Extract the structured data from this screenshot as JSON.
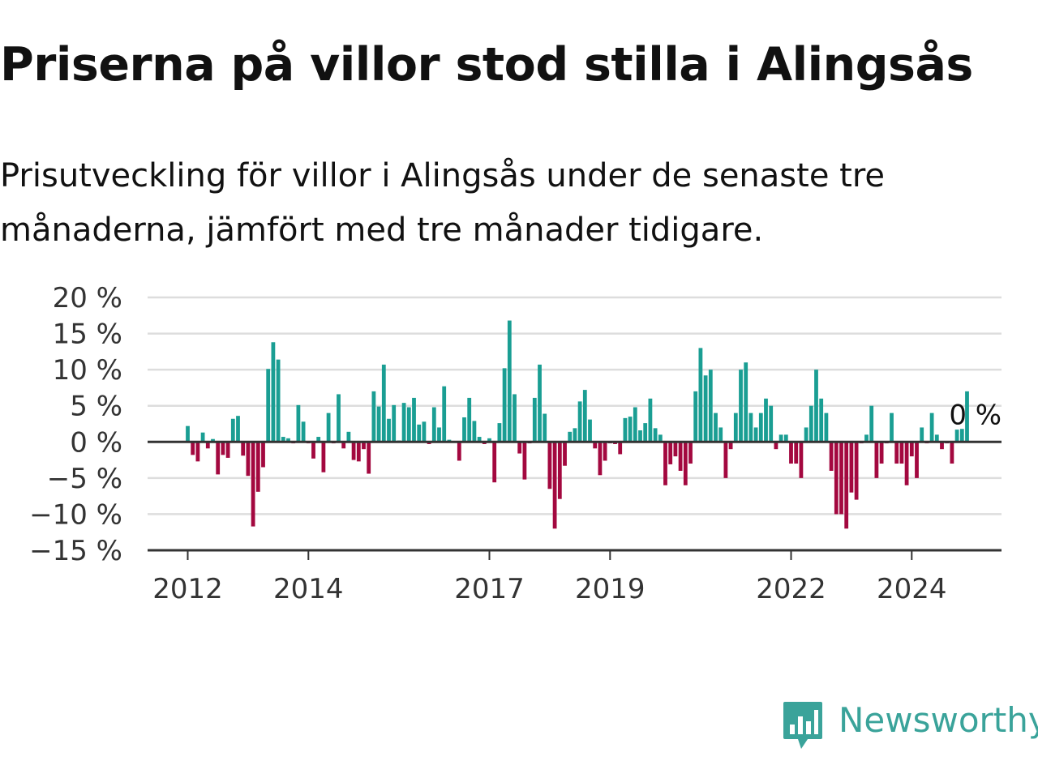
{
  "title": "Priserna på villor stod stilla i Alingsås",
  "subtitle": "Prisutveckling för villor i Alingsås under de senaste tre månaderna, jämfört med tre månader tidigare.",
  "brand": {
    "name": "Newsworthy",
    "logo_icon": "newsworthy-chart-bubble-icon"
  },
  "colors": {
    "positive": "#1a9e93",
    "negative": "#a3083f",
    "grid": "#dddddd",
    "baseline": "#333333",
    "brand": "#3aa39a"
  },
  "chart_data": {
    "type": "bar",
    "ylim": [
      -15,
      20
    ],
    "yticks": [
      20,
      15,
      10,
      5,
      0,
      -5,
      -10,
      -15
    ],
    "ytick_labels": [
      "20 %",
      "15 %",
      "10 %",
      "5 %",
      "0 %",
      "−5 %",
      "−10 %",
      "−15 %"
    ],
    "xtick_labels": [
      "2012",
      "2014",
      "2017",
      "2019",
      "2022",
      "2024"
    ],
    "xtick_dates": [
      "2012-01",
      "2014-01",
      "2017-01",
      "2019-01",
      "2022-01",
      "2024-01"
    ],
    "x_start": "2012-01",
    "end_label": "0 %",
    "grid": true,
    "values": [
      2.2,
      -1.8,
      -2.7,
      1.3,
      -0.9,
      0.4,
      -4.5,
      -1.8,
      -2.2,
      3.2,
      3.6,
      -1.9,
      -4.7,
      -11.7,
      -6.9,
      -3.5,
      10.1,
      13.8,
      11.4,
      0.7,
      0.5,
      -0.2,
      5.1,
      2.8,
      -0.2,
      -2.3,
      0.7,
      -4.2,
      4.0,
      -0.2,
      6.6,
      -0.9,
      1.4,
      -2.5,
      -2.7,
      -1.0,
      -4.4,
      7.0,
      4.9,
      10.7,
      3.2,
      5.1,
      0.2,
      5.4,
      4.8,
      6.1,
      2.4,
      2.8,
      -0.3,
      4.8,
      2.0,
      7.7,
      0.3,
      -0.1,
      -2.6,
      3.4,
      6.1,
      2.9,
      0.7,
      -0.3,
      0.5,
      -5.6,
      2.6,
      10.2,
      16.8,
      6.6,
      -1.6,
      -5.2,
      -0.2,
      6.1,
      10.7,
      3.9,
      -6.5,
      -12.0,
      -7.9,
      -3.3,
      1.4,
      1.9,
      5.6,
      7.2,
      3.1,
      -0.9,
      -4.6,
      -2.6,
      -0.2,
      -0.3,
      -1.7,
      3.3,
      3.5,
      4.8,
      1.6,
      2.6,
      6.0,
      1.9,
      1.0,
      -6.0,
      -3.1,
      -2.0,
      -4.0,
      -6.0,
      -3.0,
      7.0,
      13.0,
      9.2,
      10.0,
      4.0,
      2.0,
      -5.0,
      -1.0,
      4.0,
      10.0,
      11.0,
      4.0,
      2.0,
      4.0,
      6.0,
      5.0,
      -1.0,
      1.0,
      1.0,
      -3.0,
      -3.0,
      -5.0,
      2.0,
      5.0,
      10.0,
      6.0,
      4.0,
      -4.0,
      -10.0,
      -10.0,
      -12.0,
      -7.0,
      -8.0,
      -0.2,
      1.0,
      5.0,
      -5.0,
      -3.0,
      -0.2,
      4.0,
      -3.0,
      -3.0,
      -6.0,
      -2.0,
      -5.0,
      2.0,
      -0.2,
      4.0,
      1.0,
      -1.0,
      -0.2,
      -3.0,
      1.7,
      1.8,
      7.0,
      0.0
    ]
  }
}
